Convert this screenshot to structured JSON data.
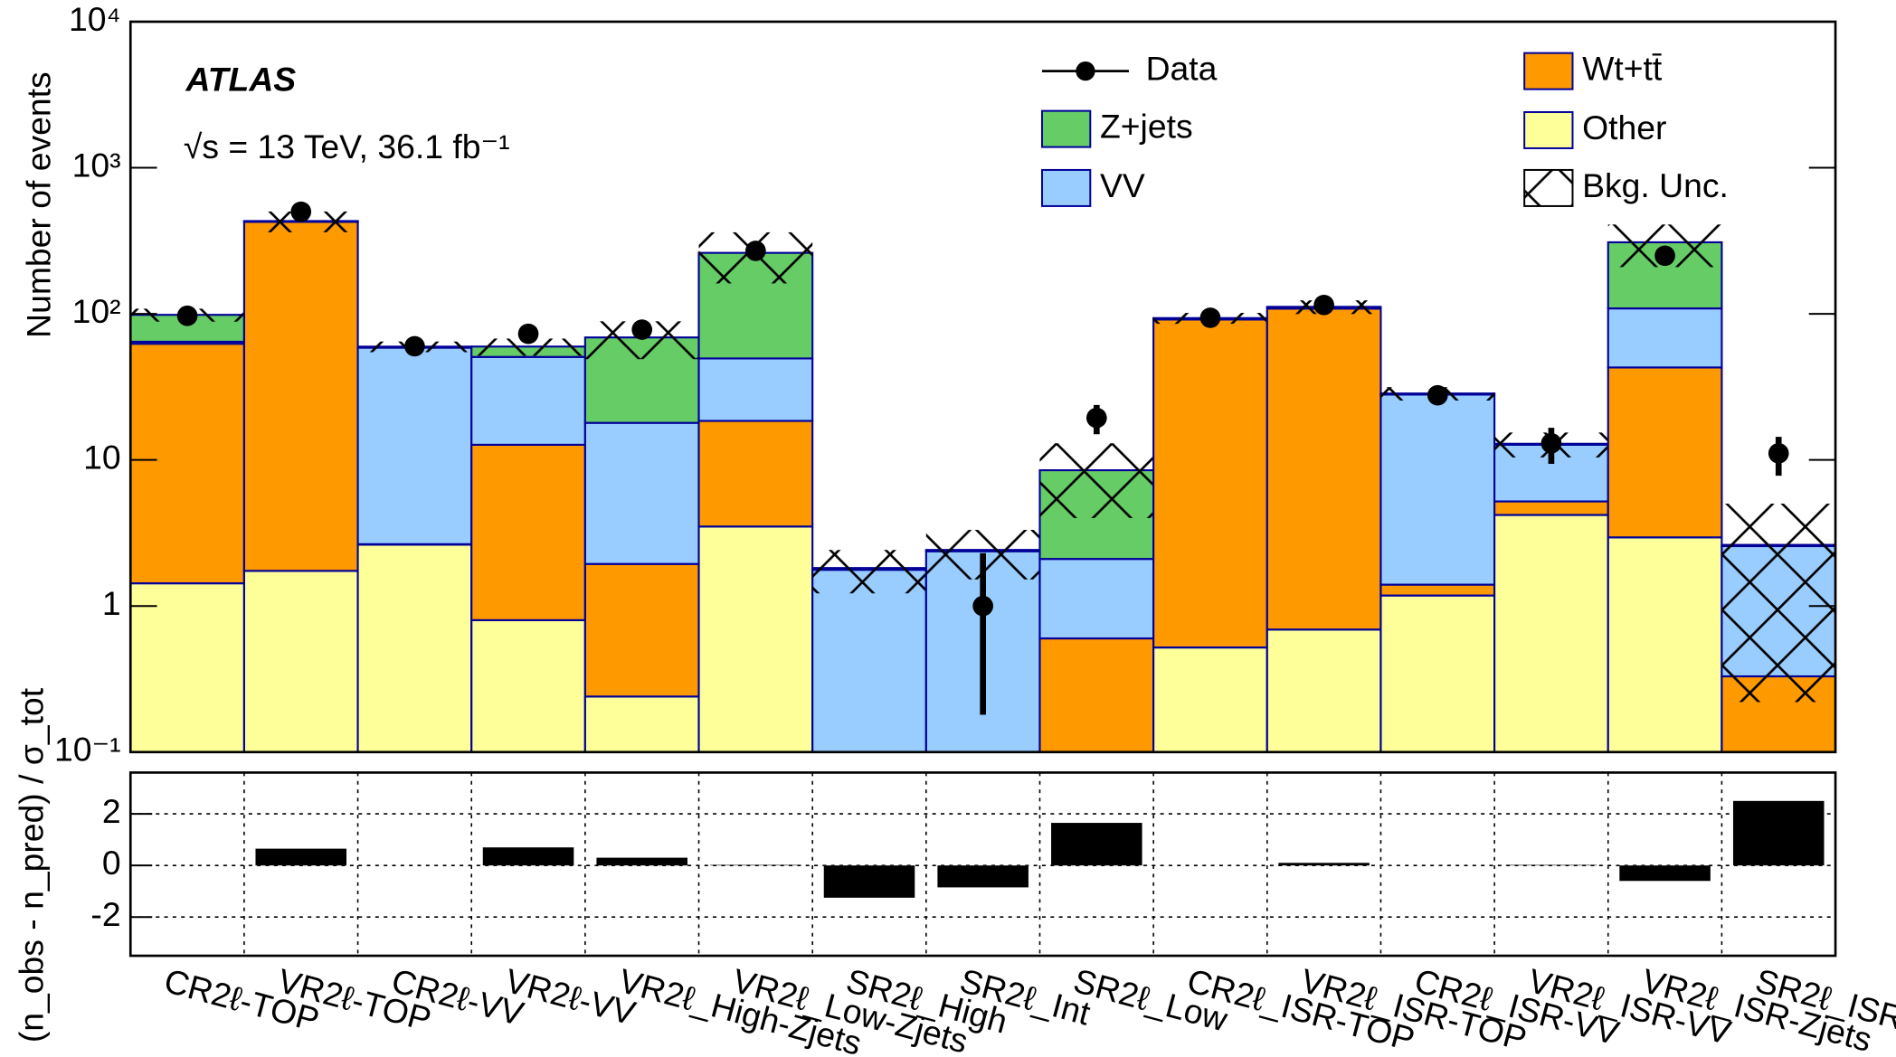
{
  "chart_data": [
    {
      "type": "stacked_bar",
      "log_scale": true,
      "ylabel": "Number of events",
      "annotations": [
        "ATLAS",
        "√s = 13 TeV, 36.1 fb⁻¹"
      ],
      "ylim": [
        0.1,
        10000
      ],
      "yticks": [
        {
          "value": 0.1,
          "label": "10⁻¹"
        },
        1,
        10,
        {
          "value": 100,
          "label": "10²"
        },
        {
          "value": 1000,
          "label": "10³"
        },
        {
          "value": 10000,
          "label": "10⁴"
        }
      ],
      "series": [
        {
          "name": "Other",
          "color": "#ffff99",
          "values": [
            1.43,
            1.74,
            2.63,
            0.8,
            0.24,
            3.5,
            0.05,
            0.05,
            0.05,
            0.52,
            0.69,
            1.18,
            4.2,
            2.95,
            0.05
          ]
        },
        {
          "name": "Wt+tt̄",
          "color": "#ff9900",
          "values": [
            61,
            425,
            0.02,
            11.9,
            1.7,
            15,
            0.02,
            0.02,
            0.55,
            91,
            108,
            0.22,
            1.0,
            40,
            0.28
          ]
        },
        {
          "name": "VV",
          "color": "#99ccff",
          "values": [
            2,
            2,
            56,
            38,
            16,
            31,
            1.7,
            2.3,
            1.5,
            1,
            2,
            26.6,
            7.5,
            66,
            2.24
          ]
        },
        {
          "name": "Z+jets",
          "color": "#66cc66",
          "values": [
            34,
            3,
            1,
            9,
            51,
            212,
            0.05,
            0.05,
            6.4,
            1,
            1,
            0.5,
            0.2,
            200,
            0.05
          ]
        }
      ],
      "data": {
        "name": "Data",
        "color": "#000000",
        "values": [
          97,
          500,
          60,
          73,
          78,
          270,
          null,
          1,
          19.4,
          94,
          115,
          27.7,
          13,
          250,
          11.1
        ],
        "errors_low": [
          null,
          null,
          null,
          null,
          null,
          null,
          null,
          0.82,
          4.4,
          null,
          null,
          null,
          3.6,
          null,
          3.3
        ],
        "errors_high": [
          null,
          null,
          null,
          null,
          null,
          null,
          null,
          1.3,
          4.4,
          null,
          null,
          null,
          3.6,
          null,
          3.3
        ]
      },
      "uncertainty": {
        "name": "Bkg. Unc.",
        "values": [
          10,
          70,
          5,
          8,
          20,
          100,
          0.6,
          0.9,
          4.5,
          8,
          12,
          3,
          2.5,
          100,
          2.4
        ]
      }
    },
    {
      "type": "bar",
      "ylabel": "(n_obs - n_pred) / σ_tot",
      "categories": [
        "CR2ℓ-TOP",
        "VR2ℓ-TOP",
        "CR2ℓ-VV",
        "VR2ℓ-VV",
        "VR2ℓ_High-Zjets",
        "VR2ℓ_Low-Zjets",
        "SR2ℓ_High",
        "SR2ℓ_Int",
        "SR2ℓ_Low",
        "CR2ℓ_ISR-TOP",
        "VR2ℓ_ISR-TOP",
        "CR2ℓ_ISR-VV",
        "VR2ℓ_ISR-VV",
        "VR2ℓ_ISR-Zjets",
        "SR2ℓ_ISR"
      ],
      "values": [
        0,
        0.65,
        0,
        0.7,
        0.3,
        0.02,
        -1.25,
        -0.85,
        1.65,
        0,
        0.1,
        0,
        0.02,
        -0.6,
        2.5
      ],
      "color": "#000000",
      "ylim": [
        -3.5,
        3.6
      ],
      "yticks": [
        -2,
        0,
        2
      ],
      "grid": true
    }
  ]
}
